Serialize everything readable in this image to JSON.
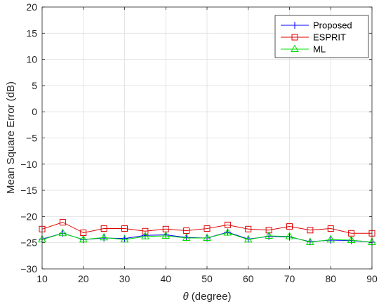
{
  "chart_data": {
    "type": "line",
    "xlabel_symbol": "θ",
    "xlabel_text": " (degree)",
    "ylabel": "Mean Square Error (dB)",
    "xlim": [
      10,
      90
    ],
    "ylim": [
      -30,
      20
    ],
    "xticks": [
      10,
      20,
      30,
      40,
      50,
      60,
      70,
      80,
      90
    ],
    "yticks": [
      20,
      15,
      10,
      5,
      0,
      -5,
      -10,
      -15,
      -20,
      -25,
      -30
    ],
    "ytick_labels": [
      "20",
      "15",
      "10",
      "5",
      "0",
      "−5",
      "−10",
      "−15",
      "−20",
      "−25",
      "−30"
    ],
    "grid": true,
    "legend_position": "top-right",
    "x": [
      10,
      15,
      20,
      25,
      30,
      35,
      40,
      45,
      50,
      55,
      60,
      65,
      70,
      75,
      80,
      85,
      90
    ],
    "series": [
      {
        "name": "Proposed",
        "marker": "plus",
        "color": "#0000ff",
        "values": [
          -24.3,
          -23.2,
          -24.4,
          -24.1,
          -24.2,
          -23.6,
          -23.5,
          -24.0,
          -24.1,
          -23.0,
          -24.3,
          -23.8,
          -23.9,
          -24.8,
          -24.5,
          -24.6,
          -24.9
        ]
      },
      {
        "name": "ESPRIT",
        "marker": "square",
        "color": "#e00000",
        "values": [
          -22.4,
          -21.1,
          -23.1,
          -22.3,
          -22.3,
          -22.8,
          -22.4,
          -22.7,
          -22.3,
          -21.6,
          -22.4,
          -22.6,
          -21.9,
          -22.6,
          -22.3,
          -23.2,
          -23.2
        ]
      },
      {
        "name": "ML",
        "marker": "triangle",
        "color": "#00dd00",
        "values": [
          -24.4,
          -23.2,
          -24.4,
          -24.0,
          -24.4,
          -23.8,
          -23.7,
          -24.1,
          -24.1,
          -23.1,
          -24.4,
          -23.7,
          -23.8,
          -24.9,
          -24.4,
          -24.5,
          -24.9
        ]
      }
    ]
  }
}
